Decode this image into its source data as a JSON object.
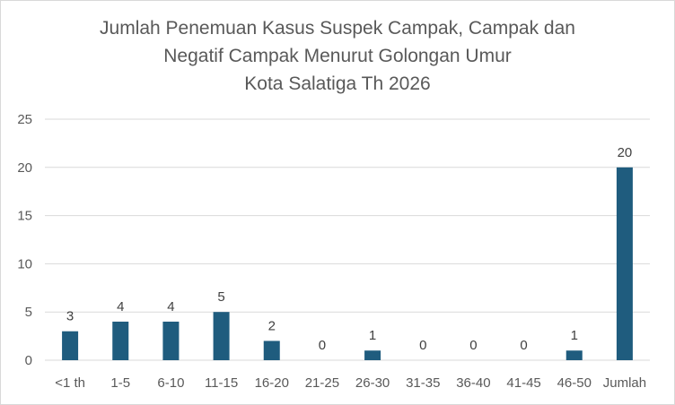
{
  "chart_data": {
    "type": "bar",
    "title_lines": [
      "Jumlah Penemuan Kasus Suspek Campak, Campak dan",
      "Negatif Campak Menurut Golongan Umur",
      "Kota Salatiga  Th 2026"
    ],
    "categories": [
      "<1 th",
      "1-5",
      "6-10",
      "11-15",
      "16-20",
      "21-25",
      "26-30",
      "31-35",
      "36-40",
      "41-45",
      "46-50",
      "Jumlah"
    ],
    "values": [
      3,
      4,
      4,
      5,
      2,
      0,
      1,
      0,
      0,
      0,
      1,
      20
    ],
    "data_labels": [
      "3",
      "4",
      "4",
      "5",
      "2",
      "0",
      "1",
      "0",
      "0",
      "0",
      "1",
      "20"
    ],
    "yticks": [
      0,
      5,
      10,
      15,
      20,
      25
    ],
    "ytick_labels": [
      "0",
      "5",
      "10",
      "15",
      "20",
      "25"
    ],
    "ylim": [
      0,
      25
    ],
    "xlabel": "",
    "ylabel": "",
    "grid": true,
    "legend": "none",
    "bar_color": "#1f5c7e",
    "grid_color": "#d9d9d9"
  }
}
